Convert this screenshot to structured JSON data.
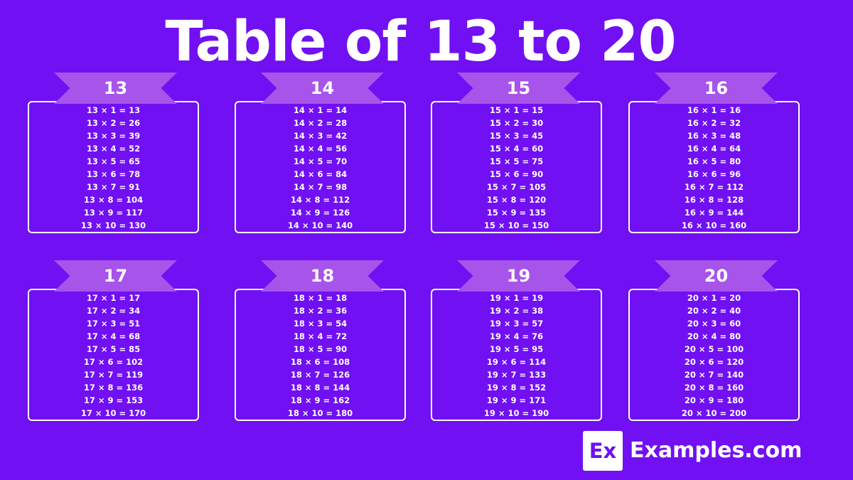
{
  "title": "Table of 13 to 20",
  "tables": [
    {
      "number": "13",
      "rows": [
        "13 × 1 = 13",
        "13 × 2 = 26",
        "13 × 3 = 39",
        "13 × 4 = 52",
        "13 × 5 = 65",
        "13 × 6 = 78",
        "13 × 7 = 91",
        "13 × 8 = 104",
        "13 × 9 = 117",
        "13 × 10 = 130"
      ]
    },
    {
      "number": "14",
      "rows": [
        "14 × 1 = 14",
        "14 × 2 = 28",
        "14 × 3 = 42",
        "14 × 4 = 56",
        "14 × 5 = 70",
        "14 × 6 = 84",
        "14 × 7 = 98",
        "14 × 8 = 112",
        "14 × 9 = 126",
        "14 × 10 = 140"
      ]
    },
    {
      "number": "15",
      "rows": [
        "15 × 1 = 15",
        "15 × 2 = 30",
        "15 × 3 = 45",
        "15 × 4 = 60",
        "15 × 5 = 75",
        "15 × 6 = 90",
        "15 × 7 = 105",
        "15 × 8 = 120",
        "15 × 9 = 135",
        "15 × 10 = 150"
      ]
    },
    {
      "number": "16",
      "rows": [
        "16 × 1 = 16",
        "16 × 2 = 32",
        "16 × 3 = 48",
        "16 × 4 = 64",
        "16 × 5 = 80",
        "16 × 6 = 96",
        "16 × 7 = 112",
        "16 × 8 = 128",
        "16 × 9 = 144",
        "16 × 10 = 160"
      ]
    },
    {
      "number": "17",
      "rows": [
        "17 × 1 = 17",
        "17 × 2 = 34",
        "17 × 3 = 51",
        "17 × 4 = 68",
        "17 × 5 = 85",
        "17 × 6 = 102",
        "17 × 7 = 119",
        "17 × 8 = 136",
        "17 × 9 = 153",
        "17 × 10 = 170"
      ]
    },
    {
      "number": "18",
      "rows": [
        "18 × 1 = 18",
        "18 × 2 = 36",
        "18 × 3 = 54",
        "18 × 4 = 72",
        "18 × 5 = 90",
        "18 × 6 = 108",
        "18 × 7 = 126",
        "18 × 8 = 144",
        "18 × 9 = 162",
        "18 × 10 = 180"
      ]
    },
    {
      "number": "19",
      "rows": [
        "19 × 1 = 19",
        "19 × 2 = 38",
        "19 × 3 = 57",
        "19 × 4 = 76",
        "19 × 5 = 95",
        "19 × 6 = 114",
        "19 × 7 = 133",
        "19 × 8 = 152",
        "19 × 9 = 171",
        "19 × 10 = 190"
      ]
    },
    {
      "number": "20",
      "rows": [
        "20 × 1 = 20",
        "20 × 2 = 40",
        "20 × 3 = 60",
        "20 × 4 = 80",
        "20 × 5 = 100",
        "20 × 6 = 120",
        "20 × 7 = 140",
        "20 × 8 = 160",
        "20 × 9 = 180",
        "20 × 10 = 200"
      ]
    }
  ],
  "brand": {
    "logo_text": "Ex",
    "name": "Examples.com"
  },
  "colors": {
    "background": "#7110f2",
    "ribbon": "#a654ea",
    "text": "#ffffff"
  }
}
